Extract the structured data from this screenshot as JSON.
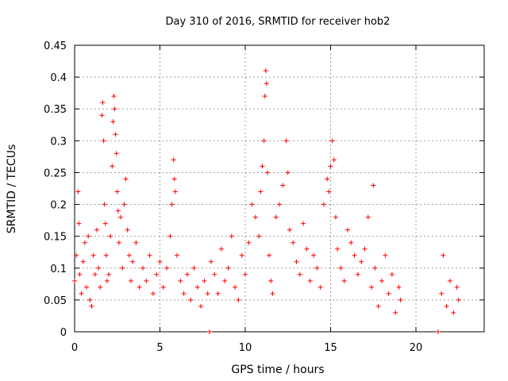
{
  "chart_data": {
    "type": "scatter",
    "title": "Day 310 of 2016, SRMTID for receiver hob2",
    "xlabel": "GPS time / hours",
    "ylabel": "SRMTID / TECUs",
    "xlim": [
      0,
      24
    ],
    "ylim": [
      0,
      0.45
    ],
    "x_ticks": [
      0,
      5,
      10,
      15,
      20
    ],
    "y_ticks": [
      0,
      0.05,
      0.1,
      0.15,
      0.2,
      0.25,
      0.3,
      0.35,
      0.4,
      0.45
    ],
    "x_tick_labels": [
      "0",
      "5",
      "10",
      "15",
      "20"
    ],
    "y_tick_labels": [
      "0",
      "0.05",
      "0.1",
      "0.15",
      "0.2",
      "0.25",
      "0.3",
      "0.35",
      "0.4",
      "0.45"
    ],
    "grid": true,
    "marker": "+",
    "marker_color": "#ff0000",
    "series": [
      {
        "name": "SRMTID",
        "x": [
          0.0,
          0.1,
          0.2,
          0.25,
          0.3,
          0.4,
          0.5,
          0.6,
          0.7,
          0.8,
          0.9,
          1.0,
          1.1,
          1.2,
          1.3,
          1.4,
          1.5,
          1.6,
          1.65,
          1.7,
          1.75,
          1.8,
          1.85,
          1.9,
          2.0,
          2.1,
          2.2,
          2.25,
          2.3,
          2.35,
          2.4,
          2.45,
          2.5,
          2.55,
          2.6,
          2.7,
          2.8,
          2.9,
          3.0,
          3.1,
          3.2,
          3.3,
          3.4,
          3.6,
          3.8,
          4.0,
          4.2,
          4.4,
          4.6,
          4.8,
          5.0,
          5.2,
          5.4,
          5.6,
          5.7,
          5.8,
          5.85,
          5.9,
          6.0,
          6.2,
          6.4,
          6.6,
          6.8,
          7.0,
          7.2,
          7.4,
          7.6,
          7.8,
          7.9,
          8.0,
          8.2,
          8.4,
          8.6,
          8.8,
          9.0,
          9.2,
          9.4,
          9.6,
          9.8,
          10.0,
          10.2,
          10.4,
          10.6,
          10.8,
          10.9,
          11.0,
          11.1,
          11.15,
          11.2,
          11.25,
          11.3,
          11.4,
          11.5,
          11.6,
          11.8,
          12.0,
          12.2,
          12.4,
          12.5,
          12.6,
          12.8,
          13.0,
          13.2,
          13.4,
          13.6,
          13.8,
          14.0,
          14.2,
          14.4,
          14.6,
          14.8,
          14.9,
          15.0,
          15.1,
          15.2,
          15.3,
          15.4,
          15.6,
          15.8,
          16.0,
          16.2,
          16.4,
          16.6,
          16.8,
          17.0,
          17.2,
          17.4,
          17.5,
          17.6,
          17.8,
          18.0,
          18.2,
          18.4,
          18.6,
          18.8,
          19.0,
          19.1,
          21.3,
          21.5,
          21.6,
          21.8,
          22.0,
          22.2,
          22.4,
          22.5
        ],
        "y": [
          0.08,
          0.12,
          0.22,
          0.17,
          0.09,
          0.06,
          0.11,
          0.14,
          0.07,
          0.15,
          0.05,
          0.04,
          0.12,
          0.09,
          0.16,
          0.1,
          0.07,
          0.34,
          0.36,
          0.3,
          0.2,
          0.17,
          0.12,
          0.08,
          0.09,
          0.15,
          0.26,
          0.33,
          0.37,
          0.35,
          0.31,
          0.28,
          0.22,
          0.19,
          0.14,
          0.18,
          0.1,
          0.2,
          0.24,
          0.16,
          0.12,
          0.08,
          0.11,
          0.14,
          0.07,
          0.1,
          0.08,
          0.12,
          0.06,
          0.09,
          0.11,
          0.07,
          0.1,
          0.15,
          0.2,
          0.27,
          0.24,
          0.22,
          0.12,
          0.08,
          0.06,
          0.09,
          0.05,
          0.1,
          0.07,
          0.04,
          0.08,
          0.06,
          0.0,
          0.11,
          0.09,
          0.06,
          0.13,
          0.08,
          0.1,
          0.15,
          0.07,
          0.05,
          0.12,
          0.09,
          0.14,
          0.2,
          0.18,
          0.15,
          0.22,
          0.26,
          0.3,
          0.37,
          0.41,
          0.39,
          0.25,
          0.12,
          0.08,
          0.06,
          0.18,
          0.2,
          0.23,
          0.3,
          0.25,
          0.16,
          0.14,
          0.11,
          0.09,
          0.17,
          0.13,
          0.08,
          0.12,
          0.1,
          0.07,
          0.2,
          0.24,
          0.22,
          0.26,
          0.3,
          0.27,
          0.18,
          0.13,
          0.1,
          0.08,
          0.16,
          0.14,
          0.12,
          0.09,
          0.11,
          0.13,
          0.18,
          0.07,
          0.23,
          0.1,
          0.04,
          0.08,
          0.12,
          0.06,
          0.09,
          0.03,
          0.07,
          0.05,
          0.0,
          0.06,
          0.12,
          0.04,
          0.08,
          0.03,
          0.07,
          0.05
        ]
      }
    ]
  }
}
